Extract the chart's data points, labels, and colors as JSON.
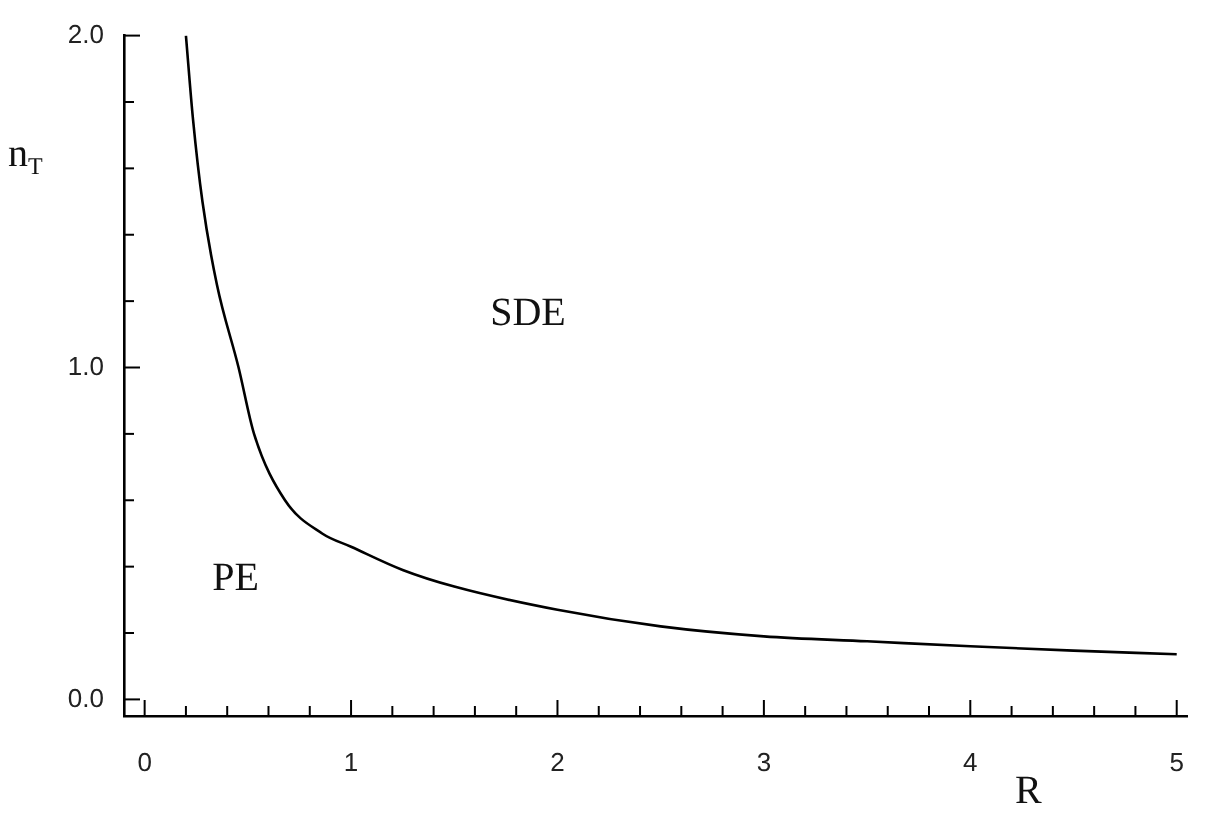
{
  "chart_data": {
    "type": "line",
    "xlabel": "R",
    "ylabel": "n$_{T}$",
    "x": [
      0.2,
      0.234,
      0.28,
      0.35,
      0.455,
      0.53,
      0.68,
      0.86,
      1,
      1.25,
      1.5,
      2,
      2.5,
      3,
      3.5,
      4,
      4.5,
      5
    ],
    "series": [
      {
        "color": "#000000",
        "values": [
          2.0,
          1.75,
          1.5,
          1.25,
          1.0,
          0.8,
          0.6,
          0.5,
          0.46,
          0.39,
          0.34,
          0.27,
          0.22,
          0.19,
          0.175,
          0.16,
          0.147,
          0.136
        ]
      }
    ],
    "xlim": [
      -0.1,
      5.05
    ],
    "ylim": [
      -0.05,
      2.0
    ],
    "xticks": [
      0,
      {
        "value": 0.2,
        "label": null
      },
      {
        "value": 0.4,
        "label": null
      },
      {
        "value": 0.6,
        "label": null
      },
      {
        "value": 0.8,
        "label": null
      },
      1,
      {
        "value": 1.2,
        "label": null
      },
      {
        "value": 1.4,
        "label": null
      },
      {
        "value": 1.6,
        "label": null
      },
      {
        "value": 1.8,
        "label": null
      },
      2,
      {
        "value": 2.2,
        "label": null
      },
      {
        "value": 2.4,
        "label": null
      },
      {
        "value": 2.6,
        "label": null
      },
      {
        "value": 2.8,
        "label": null
      },
      3,
      {
        "value": 3.2,
        "label": null
      },
      {
        "value": 3.4,
        "label": null
      },
      {
        "value": 3.6,
        "label": null
      },
      {
        "value": 3.8,
        "label": null
      },
      4,
      {
        "value": 4.2,
        "label": null
      },
      {
        "value": 4.4,
        "label": null
      },
      {
        "value": 4.6,
        "label": null
      },
      {
        "value": 4.8,
        "label": null
      },
      5
    ],
    "yticks": [
      {
        "value": 0,
        "label": "0.0"
      },
      {
        "value": 0.2,
        "label": null
      },
      {
        "value": 0.4,
        "label": null
      },
      {
        "value": 0.6,
        "label": null
      },
      {
        "value": 0.8,
        "label": null
      },
      {
        "value": 1,
        "label": "1.0"
      },
      {
        "value": 1.2,
        "label": null
      },
      {
        "value": 1.4,
        "label": null
      },
      {
        "value": 1.6,
        "label": null
      },
      {
        "value": 1.8,
        "label": null
      },
      {
        "value": 2,
        "label": "2.0"
      }
    ],
    "annotations": [
      "SDE",
      "PE"
    ],
    "grid": false,
    "legend": false,
    "marker": "none",
    "line_style": "solid"
  }
}
